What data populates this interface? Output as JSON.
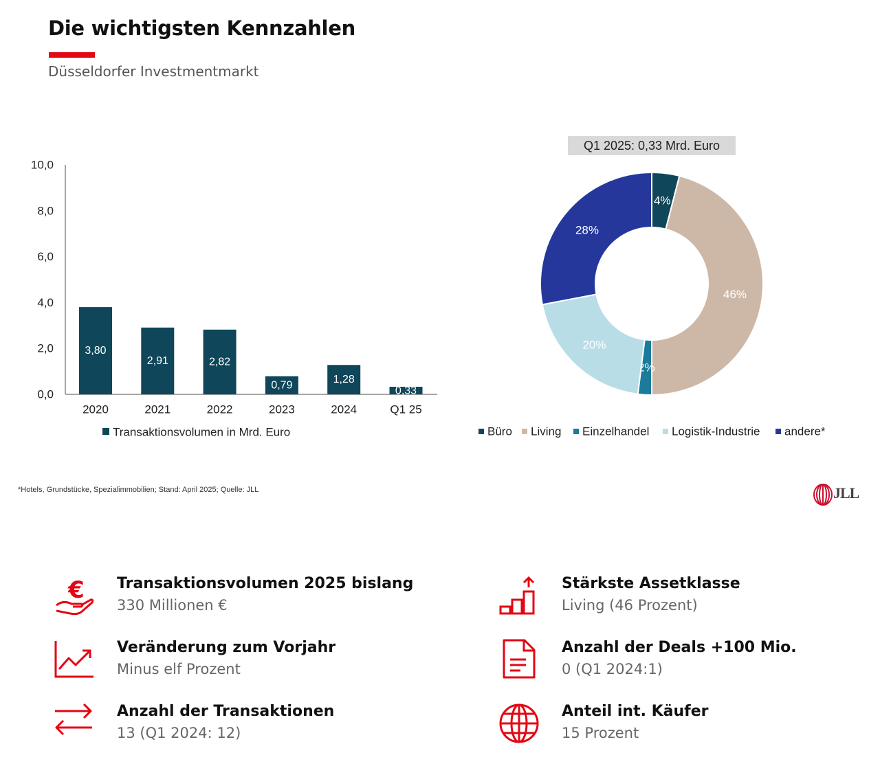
{
  "header": {
    "title": "Die wichtigsten Kennzahlen",
    "subtitle": "Düsseldorfer Investmentmarkt",
    "accent_color": "#e30613"
  },
  "chart_data": [
    {
      "type": "bar",
      "categories": [
        "2020",
        "2021",
        "2022",
        "2023",
        "2024",
        "Q1 25"
      ],
      "series": [
        {
          "name": "Transaktionsvolumen in Mrd. Euro",
          "values": [
            3.8,
            2.91,
            2.82,
            0.79,
            1.28,
            0.33
          ],
          "data_labels": [
            "3,80",
            "2,91",
            "2,82",
            "0,79",
            "1,28",
            "0,33"
          ],
          "color": "#0f4659"
        }
      ],
      "ylim": [
        0,
        10
      ],
      "yticks": [
        0,
        2,
        4,
        6,
        8,
        10
      ],
      "ytick_labels": [
        "0,0",
        "2,0",
        "4,0",
        "6,0",
        "8,0",
        "10,0"
      ],
      "legend_position": "bottom",
      "grid": false
    },
    {
      "type": "pie",
      "title": "Q1 2025: 0,33 Mrd. Euro",
      "donut": true,
      "slices": [
        {
          "label": "Büro",
          "value": 4,
          "display": "4%",
          "color": "#0f4659"
        },
        {
          "label": "Living",
          "value": 46,
          "display": "46%",
          "color": "#cdb8a8"
        },
        {
          "label": "Einzelhandel",
          "value": 2,
          "display": "2%",
          "color": "#1a7b9a"
        },
        {
          "label": "Logistik-Industrie",
          "value": 20,
          "display": "20%",
          "color": "#b8dde6"
        },
        {
          "label": "andere*",
          "value": 28,
          "display": "28%",
          "color": "#26379b"
        }
      ],
      "legend_position": "bottom"
    }
  ],
  "footnote": "*Hotels, Grundstücke, Spezialimmobilien; Stand: April 2025; Quelle: JLL",
  "logo": {
    "text": "JLL",
    "icon": "jll-logo-icon"
  },
  "kpis": [
    {
      "icon": "euro-hand-icon",
      "label": "Transaktionsvolumen 2025 bislang",
      "value": "330 Millionen €"
    },
    {
      "icon": "trend-chart-icon",
      "label": "Veränderung zum Vorjahr",
      "value": "Minus elf Prozent"
    },
    {
      "icon": "exchange-arrows-icon",
      "label": "Anzahl der Transaktionen",
      "value": "13 (Q1 2024: 12)"
    },
    {
      "icon": "steps-up-icon",
      "label": "Stärkste Assetklasse",
      "value": "Living (46 Prozent)"
    },
    {
      "icon": "document-icon",
      "label": "Anzahl der Deals +100 Mio.",
      "value": "0 (Q1 2024:1)"
    },
    {
      "icon": "globe-icon",
      "label": "Anteil int. Käufer",
      "value": "15 Prozent"
    }
  ]
}
